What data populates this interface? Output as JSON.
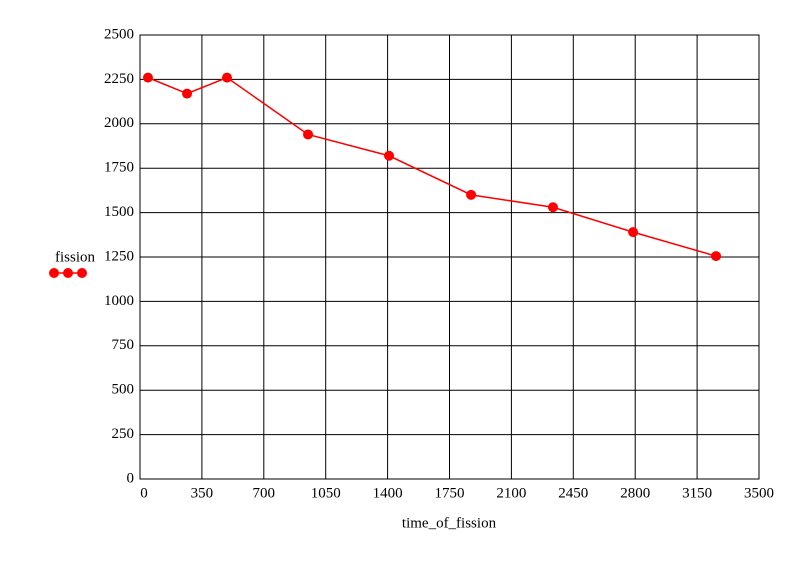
{
  "chart_data": {
    "type": "line",
    "x_label": "time_of_fission",
    "x": [
      45,
      266,
      492,
      950,
      1408,
      1872,
      2335,
      2788,
      3257
    ],
    "series": [
      {
        "name": "fission",
        "color": "#ff0000",
        "values": [
          2260,
          2170,
          2260,
          1940,
          1820,
          1600,
          1530,
          1390,
          1255
        ]
      }
    ],
    "xlim": [
      0,
      3500
    ],
    "xticks": [
      0,
      350,
      700,
      1050,
      1400,
      1750,
      2100,
      2450,
      2800,
      3150,
      3500
    ],
    "ylim": [
      0,
      2500
    ],
    "yticks": [
      0,
      250,
      500,
      750,
      1000,
      1250,
      1500,
      1750,
      2000,
      2250,
      2500
    ],
    "grid": true
  }
}
